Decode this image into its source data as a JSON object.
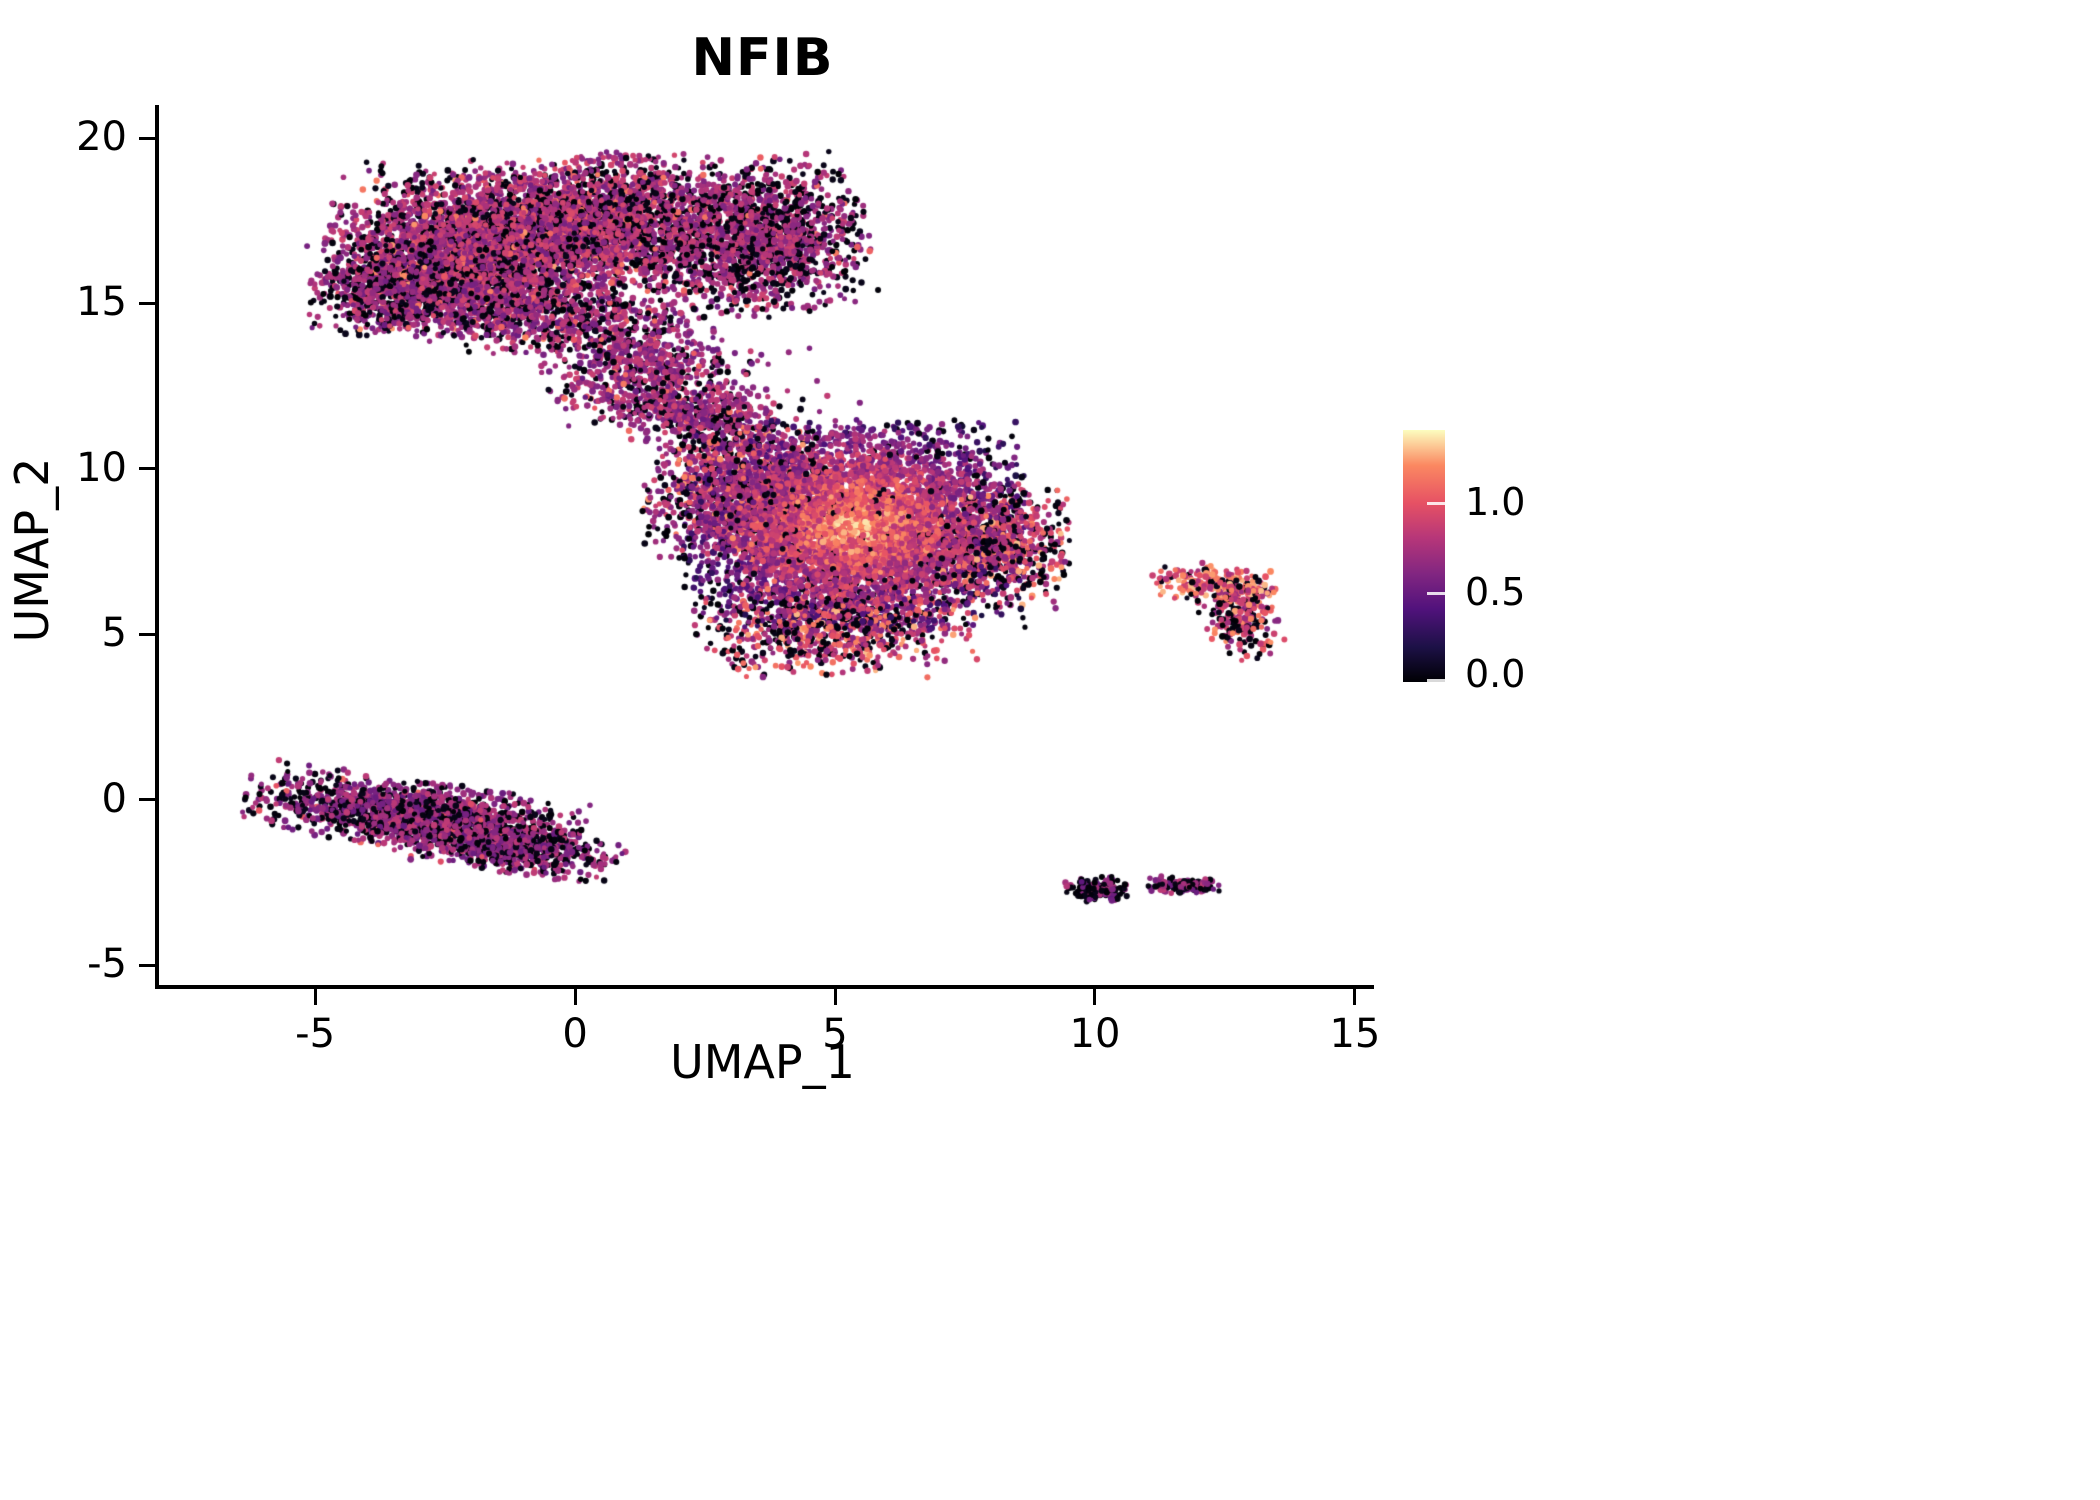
{
  "title": "NFIB",
  "chart_data": {
    "type": "scatter",
    "title": "NFIB",
    "xlabel": "UMAP_1",
    "ylabel": "UMAP_2",
    "x_ticks": [
      -5,
      0,
      5,
      10,
      15
    ],
    "y_ticks": [
      -5,
      0,
      5,
      10,
      15,
      20
    ],
    "x_range": [
      -8.08,
      15.29
    ],
    "y_range": [
      -5.6,
      21.0
    ],
    "grid": false,
    "legend_position": "right",
    "point_color_meaning": "NFIB expression level",
    "colorbar": {
      "orientation": "vertical",
      "color_range": [
        0,
        1.4
      ],
      "ticks": [
        {
          "label": "1.0",
          "value": 1.0
        },
        {
          "label": "0.5",
          "value": 0.5
        },
        {
          "label": "0.0",
          "value": 0.0
        }
      ],
      "colormap": "magma",
      "stops": [
        [
          0.0,
          "#000004"
        ],
        [
          0.14,
          "#1d1147"
        ],
        [
          0.29,
          "#51127c"
        ],
        [
          0.43,
          "#822681"
        ],
        [
          0.57,
          "#b63679"
        ],
        [
          0.71,
          "#e65164"
        ],
        [
          0.86,
          "#fb8861"
        ],
        [
          1.0,
          "#fcfdbf"
        ]
      ]
    },
    "clusters": [
      {
        "name": "upper-left-lobe",
        "center": [
          -2.3,
          16.5
        ],
        "sx": 1.2,
        "sy": 1.15,
        "rot": -8,
        "count": 3000,
        "model": {
          "type": "mix",
          "black": 0.24,
          "mid": [
            0.55,
            0.95
          ],
          "high_frac": 0.05,
          "high": [
            1.0,
            1.25
          ]
        }
      },
      {
        "name": "upper-mid-lobe",
        "center": [
          0.4,
          17.4
        ],
        "sx": 1.15,
        "sy": 1.0,
        "rot": 0,
        "count": 2100,
        "model": {
          "type": "mix",
          "black": 0.26,
          "mid": [
            0.55,
            0.95
          ],
          "high_frac": 0.04,
          "high": [
            1.0,
            1.2
          ]
        }
      },
      {
        "name": "upper-right-lobe",
        "center": [
          3.4,
          17.0
        ],
        "sx": 1.0,
        "sy": 1.1,
        "rot": 10,
        "count": 1700,
        "model": {
          "type": "mix",
          "black": 0.34,
          "mid": [
            0.55,
            0.9
          ],
          "high_frac": 0.02,
          "high": [
            1.0,
            1.15
          ]
        }
      },
      {
        "name": "upper-left-tip",
        "center": [
          -3.7,
          15.4
        ],
        "sx": 0.7,
        "sy": 0.65,
        "rot": 0,
        "count": 500,
        "model": {
          "type": "mix",
          "black": 0.38,
          "mid": [
            0.5,
            0.85
          ],
          "high_frac": 0.02,
          "high": [
            1.0,
            1.1
          ]
        }
      },
      {
        "name": "upper-bottom-edge",
        "center": [
          -0.6,
          14.6
        ],
        "sx": 1.5,
        "sy": 0.55,
        "rot": -5,
        "count": 700,
        "model": {
          "type": "mix",
          "black": 0.3,
          "mid": [
            0.5,
            0.9
          ],
          "high_frac": 0.03,
          "high": [
            1.0,
            1.15
          ]
        }
      },
      {
        "name": "bridge",
        "center": [
          1.2,
          12.9
        ],
        "sx": 0.9,
        "sy": 0.8,
        "rot": -30,
        "count": 650,
        "model": {
          "type": "mix",
          "black": 0.22,
          "mid": [
            0.5,
            0.9
          ],
          "high_frac": 0.03,
          "high": [
            1.0,
            1.15
          ]
        }
      },
      {
        "name": "neck",
        "center": [
          2.4,
          11.6
        ],
        "sx": 0.75,
        "sy": 0.45,
        "rot": -15,
        "count": 380,
        "model": {
          "type": "mix",
          "black": 0.2,
          "mid": [
            0.5,
            0.9
          ],
          "high_frac": 0.04,
          "high": [
            1.0,
            1.15
          ]
        }
      },
      {
        "name": "bridge-scatter",
        "center": [
          2.8,
          12.2
        ],
        "sx": 1.1,
        "sy": 0.7,
        "rot": 0,
        "count": 60,
        "model": {
          "type": "mix",
          "black": 0.3,
          "mid": [
            0.5,
            0.9
          ],
          "high_frac": 0.03,
          "high": [
            1.0,
            1.1
          ]
        }
      },
      {
        "name": "central-core",
        "center": [
          5.3,
          8.3
        ],
        "sx": 1.5,
        "sy": 1.45,
        "rot": 0,
        "count": 5200,
        "model": {
          "type": "radial",
          "base": 1.22,
          "slope": 0.34,
          "noise": 0.5,
          "black_base": 0.015,
          "black_edge": 0.22
        }
      },
      {
        "name": "central-left-edge",
        "center": [
          3.2,
          9.3
        ],
        "sx": 0.9,
        "sy": 1.0,
        "rot": 0,
        "count": 1100,
        "model": {
          "type": "mix",
          "black": 0.2,
          "mid": [
            0.55,
            0.95
          ],
          "high_frac": 0.12,
          "high": [
            1.0,
            1.25
          ]
        }
      },
      {
        "name": "central-bottom",
        "center": [
          4.9,
          5.3
        ],
        "sx": 1.25,
        "sy": 0.7,
        "rot": 5,
        "count": 900,
        "model": {
          "type": "mix",
          "black": 0.28,
          "mid": [
            0.6,
            1.0
          ],
          "high_frac": 0.18,
          "high": [
            1.0,
            1.3
          ]
        }
      },
      {
        "name": "central-right",
        "center": [
          7.9,
          7.7
        ],
        "sx": 0.7,
        "sy": 0.9,
        "rot": 0,
        "count": 850,
        "model": {
          "type": "mix",
          "black": 0.3,
          "mid": [
            0.6,
            1.0
          ],
          "high_frac": 0.15,
          "high": [
            1.05,
            1.3
          ]
        }
      },
      {
        "name": "right-islet-top",
        "center": [
          12.3,
          6.5
        ],
        "sx": 0.6,
        "sy": 0.3,
        "rot": -8,
        "count": 230,
        "model": {
          "type": "mix",
          "black": 0.12,
          "mid": [
            0.7,
            1.0
          ],
          "high_frac": 0.45,
          "high": [
            1.05,
            1.3
          ]
        }
      },
      {
        "name": "right-islet-bottom",
        "center": [
          12.7,
          5.4
        ],
        "sx": 0.35,
        "sy": 0.55,
        "rot": 15,
        "count": 200,
        "model": {
          "type": "mix",
          "black": 0.3,
          "mid": [
            0.6,
            0.95
          ],
          "high_frac": 0.2,
          "high": [
            1.0,
            1.25
          ]
        }
      },
      {
        "name": "lower-left-band",
        "center": [
          -3.2,
          -0.45
        ],
        "sx": 1.5,
        "sy": 0.48,
        "rot": -13,
        "count": 1600,
        "model": {
          "type": "mix",
          "black": 0.36,
          "mid": [
            0.5,
            0.85
          ],
          "high_frac": 0.01,
          "high": [
            0.95,
            1.1
          ]
        }
      },
      {
        "name": "lower-left-tail",
        "center": [
          -1.3,
          -1.45
        ],
        "sx": 1.0,
        "sy": 0.36,
        "rot": -13,
        "count": 600,
        "model": {
          "type": "mix",
          "black": 0.38,
          "mid": [
            0.5,
            0.85
          ],
          "high_frac": 0.01,
          "high": [
            0.95,
            1.05
          ]
        }
      },
      {
        "name": "bottom-islet-left",
        "center": [
          10.0,
          -2.7
        ],
        "sx": 0.3,
        "sy": 0.17,
        "rot": 0,
        "count": 160,
        "model": {
          "type": "mix",
          "black": 0.62,
          "mid": [
            0.45,
            0.8
          ],
          "high_frac": 0.0,
          "high": [
            1,
            1
          ]
        }
      },
      {
        "name": "bottom-islet-right",
        "center": [
          11.6,
          -2.6
        ],
        "sx": 0.33,
        "sy": 0.12,
        "rot": -5,
        "count": 130,
        "model": {
          "type": "mix",
          "black": 0.45,
          "mid": [
            0.5,
            0.85
          ],
          "high_frac": 0.0,
          "high": [
            1,
            1
          ]
        }
      }
    ],
    "stray_points": [
      [
        6.7,
        3.7,
        1.1
      ],
      [
        9.0,
        8.2,
        0.05
      ],
      [
        2.0,
        10.6,
        0.7
      ],
      [
        0.3,
        11.4,
        0.05
      ],
      [
        3.6,
        12.4,
        0.6
      ],
      [
        4.3,
        12.1,
        0.05
      ],
      [
        13.3,
        6.9,
        1.2
      ],
      [
        11.2,
        6.6,
        0.05
      ],
      [
        -0.2,
        11.3,
        0.6
      ],
      [
        5.4,
        12.0,
        0.6
      ],
      [
        1.5,
        10.2,
        0.05
      ]
    ]
  }
}
